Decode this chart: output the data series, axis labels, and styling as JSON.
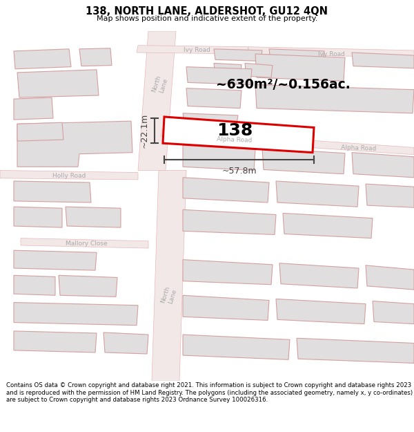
{
  "title": "138, NORTH LANE, ALDERSHOT, GU12 4QN",
  "subtitle": "Map shows position and indicative extent of the property.",
  "footer": "Contains OS data © Crown copyright and database right 2021. This information is subject to Crown copyright and database rights 2023 and is reproduced with the permission of HM Land Registry. The polygons (including the associated geometry, namely x, y co-ordinates) are subject to Crown copyright and database rights 2023 Ordnance Survey 100026316.",
  "map_bg": "#f0eeec",
  "road_fill": "#f2e8e8",
  "road_outline": "#e8b8b8",
  "road_label_color": "#aaaaaa",
  "building_fill": "#e0dede",
  "building_edge": "#d4a0a0",
  "highlight_fill": "#ffffff",
  "highlight_edge": "#dd0000",
  "highlight_label": "138",
  "area_text": "~630m²/~0.156ac.",
  "dim_width": "~57.8m",
  "dim_height": "~22.1m",
  "dim_color": "#444444"
}
